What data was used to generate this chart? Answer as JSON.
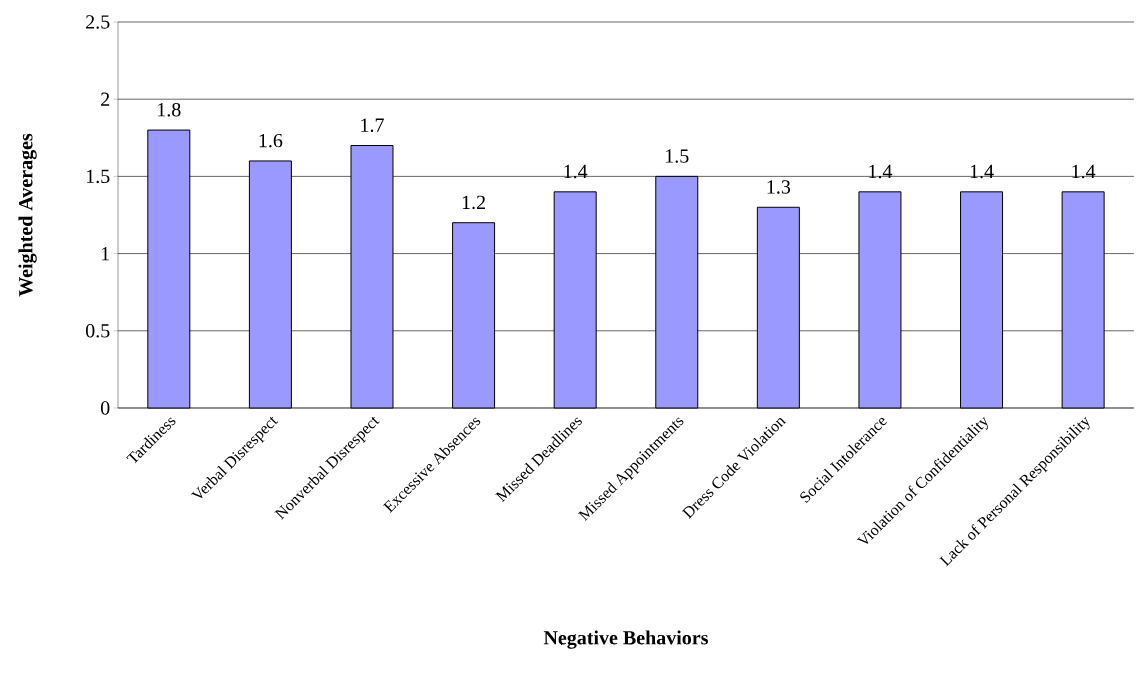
{
  "chart_data": {
    "type": "bar",
    "xlabel": "Negative Behaviors",
    "ylabel": "Weighted Averages",
    "categories": [
      "Tardiness",
      "Verbal Disrespect",
      "Nonverbal Disrespect",
      "Excessive Absences",
      "Missed Deadlines",
      "Missed Appointments",
      "Dress Code Violation",
      "Social Intolerance",
      "Violation of Confidentiality",
      "Lack of Personal Responsibility"
    ],
    "values": [
      1.8,
      1.6,
      1.7,
      1.2,
      1.4,
      1.5,
      1.3,
      1.4,
      1.4,
      1.4
    ],
    "color": "#9999ff",
    "ylim": [
      0,
      2.5
    ],
    "yticks": [
      0,
      0.5,
      1,
      1.5,
      2,
      2.5
    ],
    "grid": "y",
    "data_labels": true
  }
}
